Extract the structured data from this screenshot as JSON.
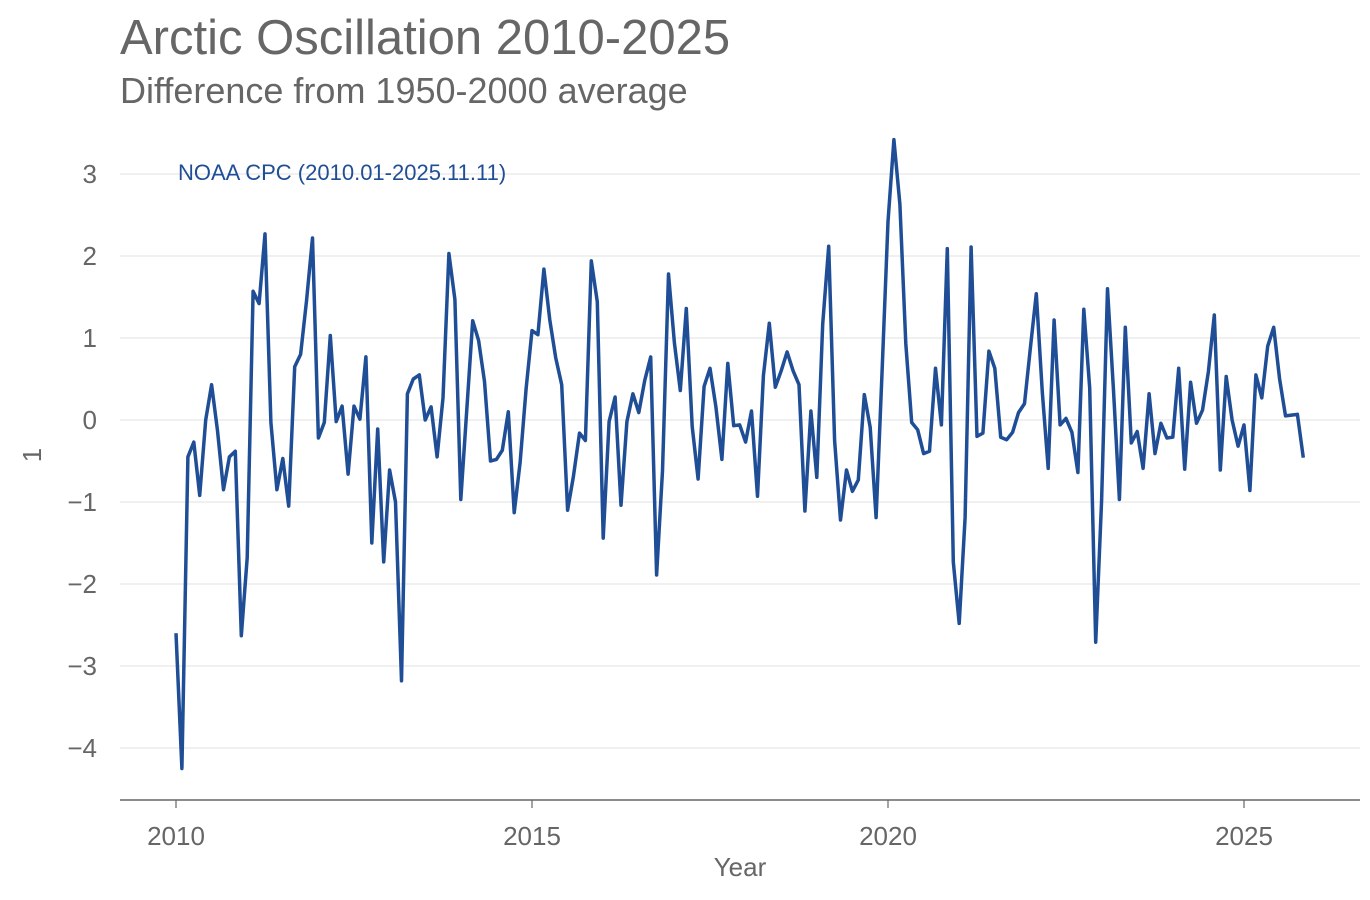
{
  "chart_data": {
    "type": "line",
    "title": "Arctic Oscillation 2010-2025",
    "subtitle": "Difference from 1950-2000 average",
    "xlabel": "Year",
    "ylabel": "1",
    "xlim": [
      2009.2,
      2026.6
    ],
    "ylim": [
      -4.6,
      3.4
    ],
    "x_ticks": [
      2010,
      2015,
      2020,
      2025
    ],
    "x_tick_labels": [
      "2010",
      "2015",
      "2020",
      "2025"
    ],
    "y_ticks": [
      -4,
      -3,
      -2,
      -1,
      0,
      1,
      2,
      3
    ],
    "y_tick_labels": [
      "−4",
      "−3",
      "−2",
      "−1",
      "0",
      "1",
      "2",
      "3"
    ],
    "grid": true,
    "legend_position": "top-left",
    "series": [
      {
        "name": "NOAA CPC (2010.01-2025.11.11)",
        "color": "#1f4e96",
        "x_start": 2010.0,
        "x_step": 0.083333,
        "values": [
          -2.6,
          -4.25,
          -0.45,
          -0.27,
          -0.92,
          0.0,
          0.43,
          -0.13,
          -0.85,
          -0.45,
          -0.38,
          -2.63,
          -1.68,
          1.57,
          1.42,
          2.27,
          -0.03,
          -0.85,
          -0.47,
          -1.05,
          0.65,
          0.8,
          1.45,
          2.22,
          -0.22,
          -0.03,
          1.03,
          -0.02,
          0.17,
          -0.66,
          0.17,
          0.01,
          0.77,
          -1.5,
          -0.11,
          -1.73,
          -0.61,
          -1.0,
          -3.18,
          0.32,
          0.5,
          0.55,
          0.0,
          0.16,
          -0.45,
          0.27,
          2.03,
          1.47,
          -0.97,
          0.11,
          1.21,
          0.97,
          0.47,
          -0.5,
          -0.48,
          -0.37,
          0.1,
          -1.13,
          -0.52,
          0.38,
          1.09,
          1.04,
          1.84,
          1.22,
          0.76,
          0.43,
          -1.1,
          -0.68,
          -0.16,
          -0.25,
          1.94,
          1.44,
          -1.44,
          -0.02,
          0.28,
          -1.04,
          -0.02,
          0.32,
          0.09,
          0.48,
          0.77,
          -1.89,
          -0.62,
          1.78,
          0.94,
          0.36,
          1.36,
          -0.08,
          -0.72,
          0.41,
          0.63,
          0.16,
          -0.48,
          0.69,
          -0.07,
          -0.06,
          -0.27,
          0.11,
          -0.93,
          0.54,
          1.18,
          0.4,
          0.6,
          0.83,
          0.6,
          0.43,
          -1.11,
          0.11,
          -0.7,
          1.17,
          2.12,
          -0.25,
          -1.22,
          -0.61,
          -0.87,
          -0.73,
          0.31,
          -0.09,
          -1.19,
          0.6,
          2.42,
          3.42,
          2.63,
          0.93,
          -0.03,
          -0.12,
          -0.41,
          -0.38,
          0.63,
          -0.06,
          2.09,
          -1.73,
          -2.48,
          -1.19,
          2.11,
          -0.2,
          -0.16,
          0.84,
          0.63,
          -0.21,
          -0.24,
          -0.15,
          0.09,
          0.2,
          0.88,
          1.54,
          0.34,
          -0.59,
          1.22,
          -0.06,
          0.02,
          -0.15,
          -0.64,
          1.35,
          0.39,
          -2.71,
          -0.98,
          1.6,
          0.36,
          -0.97,
          1.13,
          -0.28,
          -0.14,
          -0.59,
          0.32,
          -0.41,
          -0.04,
          -0.22,
          -0.21,
          0.63,
          -0.6,
          0.46,
          -0.04,
          0.12,
          0.59,
          1.28,
          -0.61,
          0.53,
          0.0,
          -0.32,
          -0.06,
          -0.86,
          0.55,
          0.27,
          0.9,
          1.13,
          0.5,
          0.05,
          0.06,
          0.07,
          -0.46
        ]
      }
    ]
  }
}
